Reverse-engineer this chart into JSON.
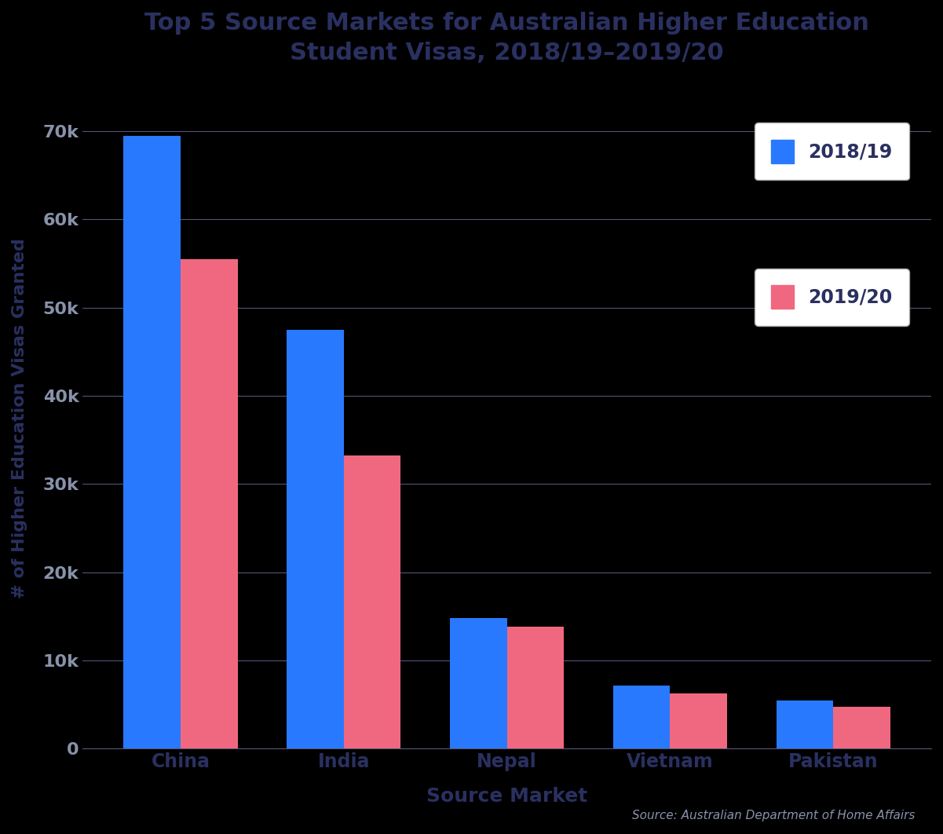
{
  "title": "Top 5 Source Markets for Australian Higher Education\nStudent Visas, 2018/19–2019/20",
  "categories": [
    "China",
    "India",
    "Nepal",
    "Vietnam",
    "Pakistan"
  ],
  "values_2018": [
    69500,
    47500,
    14800,
    7200,
    5500
  ],
  "values_2019": [
    55500,
    33200,
    13800,
    6300,
    4800
  ],
  "color_2018": "#2979FF",
  "color_2019": "#F06880",
  "xlabel": "Source Market",
  "ylabel": "# of Higher Education Visas Granted",
  "yticks": [
    0,
    10000,
    20000,
    30000,
    40000,
    50000,
    60000,
    70000
  ],
  "ytick_labels": [
    "0",
    "10k",
    "20k",
    "30k",
    "40k",
    "50k",
    "60k",
    "70k"
  ],
  "ylim": [
    0,
    75000
  ],
  "legend_labels": [
    "2018/19",
    "2019/20"
  ],
  "source_text": "Source: Australian Department of Home Affairs",
  "bg_color": "#000000",
  "plot_bg_color": "#000000",
  "grid_color": "#555577",
  "tick_label_color": "#8892aa",
  "axis_label_color": "#2a3060",
  "title_color": "#2a3060"
}
